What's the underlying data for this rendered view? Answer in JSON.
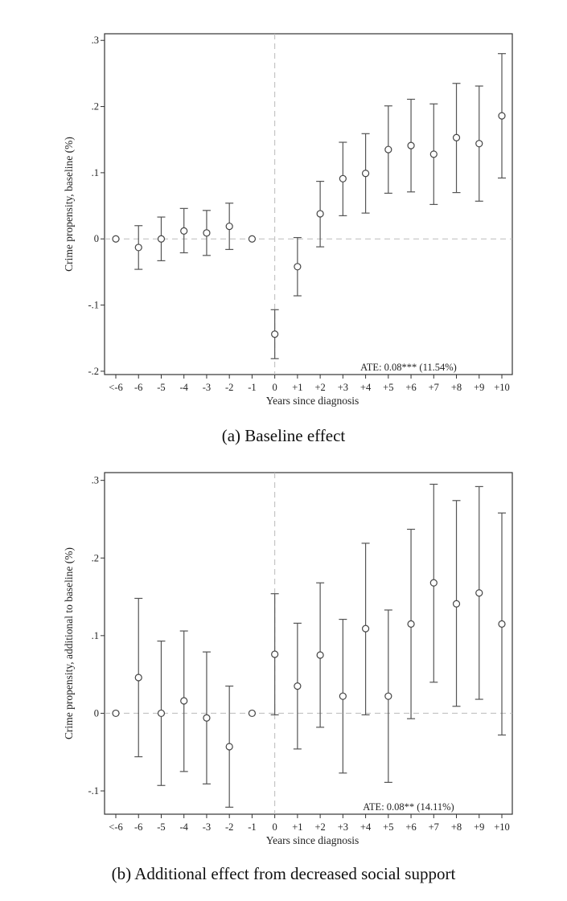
{
  "colors": {
    "axis": "#333333",
    "marker": "#444444",
    "errorbar": "#555555",
    "refline": "#bbbbbb"
  },
  "chart_data": [
    {
      "type": "scatter",
      "subtype": "point-with-error-bars",
      "caption": "(a) Baseline effect",
      "xlabel": "Years since diagnosis",
      "ylabel": "Crime propensity, baseline (%)",
      "annotation": "ATE: 0.08*** (11.54%)",
      "categories": [
        "<-6",
        "-6",
        "-5",
        "-4",
        "-3",
        "-2",
        "-1",
        "0",
        "+1",
        "+2",
        "+3",
        "+4",
        "+5",
        "+6",
        "+7",
        "+8",
        "+9",
        "+10"
      ],
      "y_ticks": [
        {
          "value": 0.3,
          "label": ".3"
        },
        {
          "value": 0.2,
          "label": ".2"
        },
        {
          "value": 0.1,
          "label": ".1"
        },
        {
          "value": 0,
          "label": "0"
        },
        {
          "value": -0.1,
          "label": "-.1"
        },
        {
          "value": -0.2,
          "label": "-.2"
        }
      ],
      "ylim": [
        -0.205,
        0.31
      ],
      "estimates": [
        0,
        -0.013,
        0,
        0.012,
        0.009,
        0.019,
        0,
        -0.144,
        -0.042,
        0.038,
        0.091,
        0.099,
        0.135,
        0.141,
        0.128,
        0.153,
        0.144,
        0.186
      ],
      "lower": [
        0,
        -0.046,
        -0.033,
        -0.021,
        -0.025,
        -0.016,
        0,
        -0.181,
        -0.086,
        -0.012,
        0.035,
        0.039,
        0.069,
        0.071,
        0.052,
        0.07,
        0.057,
        0.092
      ],
      "upper": [
        0,
        0.02,
        0.033,
        0.046,
        0.043,
        0.054,
        0,
        -0.107,
        0.002,
        0.087,
        0.146,
        0.159,
        0.201,
        0.211,
        0.204,
        0.235,
        0.231,
        0.28
      ],
      "reference_lines": {
        "x_category": "0",
        "y": 0
      },
      "grid": false
    },
    {
      "type": "scatter",
      "subtype": "point-with-error-bars",
      "caption": "(b) Additional effect from decreased social support",
      "xlabel": "Years since diagnosis",
      "ylabel": "Crime propensity, additional to baseline (%)",
      "annotation": "ATE: 0.08** (14.11%)",
      "categories": [
        "<-6",
        "-6",
        "-5",
        "-4",
        "-3",
        "-2",
        "-1",
        "0",
        "+1",
        "+2",
        "+3",
        "+4",
        "+5",
        "+6",
        "+7",
        "+8",
        "+9",
        "+10"
      ],
      "y_ticks": [
        {
          "value": 0.3,
          "label": ".3"
        },
        {
          "value": 0.2,
          "label": ".2"
        },
        {
          "value": 0.1,
          "label": ".1"
        },
        {
          "value": 0,
          "label": "0"
        },
        {
          "value": -0.1,
          "label": "-.1"
        }
      ],
      "ylim": [
        -0.13,
        0.31
      ],
      "estimates": [
        0,
        0.046,
        0,
        0.016,
        -0.006,
        -0.043,
        0,
        0.076,
        0.035,
        0.075,
        0.022,
        0.109,
        0.022,
        0.115,
        0.168,
        0.141,
        0.155,
        0.115
      ],
      "lower": [
        0,
        -0.056,
        -0.093,
        -0.075,
        -0.091,
        -0.121,
        0,
        -0.002,
        -0.046,
        -0.018,
        -0.077,
        -0.002,
        -0.089,
        -0.007,
        0.04,
        0.009,
        0.018,
        -0.028
      ],
      "upper": [
        0,
        0.148,
        0.093,
        0.106,
        0.079,
        0.035,
        0,
        0.154,
        0.116,
        0.168,
        0.121,
        0.219,
        0.133,
        0.237,
        0.295,
        0.274,
        0.292,
        0.258
      ],
      "reference_lines": {
        "x_category": "0",
        "y": 0
      },
      "grid": false
    }
  ]
}
